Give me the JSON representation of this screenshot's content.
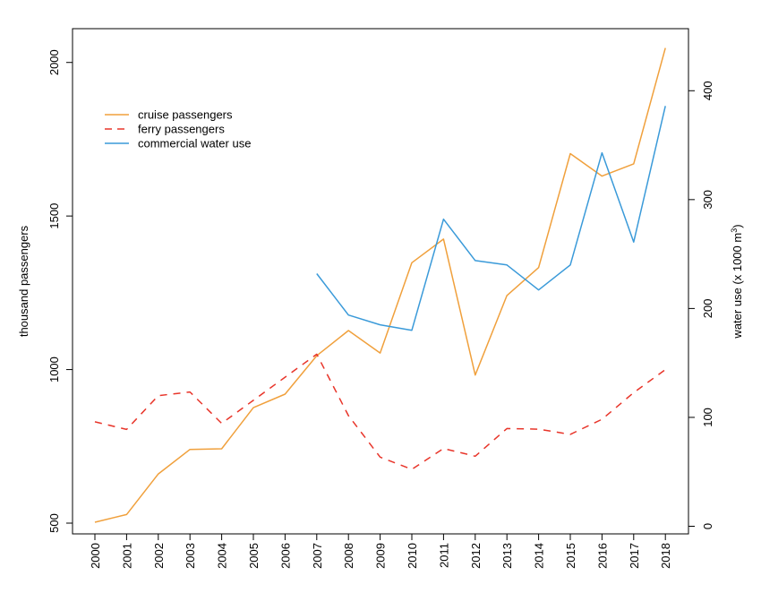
{
  "chart_data": {
    "type": "line",
    "x": [
      2000,
      2001,
      2002,
      2003,
      2004,
      2005,
      2006,
      2007,
      2008,
      2009,
      2010,
      2011,
      2012,
      2013,
      2014,
      2015,
      2016,
      2017,
      2018
    ],
    "ylabel": "thousand passengers",
    "y2label": "water use (x 1000 m³)",
    "y2label_main": "water use (x 1000 m",
    "y2label_sup": "3",
    "y2label_end": ")",
    "ylim": [
      465,
      2110
    ],
    "y2lim": [
      -7,
      457
    ],
    "yticks": [
      "500",
      "1000",
      "1500",
      "2000"
    ],
    "y2ticks": [
      "0",
      "100",
      "200",
      "300",
      "400"
    ],
    "xticks": [
      "2000",
      "2001",
      "2002",
      "2003",
      "2004",
      "2005",
      "2006",
      "2007",
      "2008",
      "2009",
      "2010",
      "2011",
      "2012",
      "2013",
      "2014",
      "2015",
      "2016",
      "2017",
      "2018"
    ],
    "grid": false,
    "legend_position": "top-left",
    "series": [
      {
        "name": "cruise passengers",
        "axis": "left",
        "style": "solid",
        "color": "#F0A03C",
        "values": [
          503,
          528,
          660,
          740,
          742,
          876,
          920,
          1045,
          1127,
          1054,
          1348,
          1425,
          982,
          1241,
          1332,
          1703,
          1630,
          1670,
          2047
        ]
      },
      {
        "name": "ferry passengers",
        "axis": "left",
        "style": "dashed",
        "color": "#E8352A",
        "values": [
          830,
          805,
          915,
          927,
          825,
          900,
          975,
          1050,
          850,
          715,
          675,
          743,
          718,
          808,
          806,
          789,
          838,
          925,
          1000
        ]
      },
      {
        "name": "commercial water use",
        "axis": "right",
        "style": "solid",
        "color": "#3A9AD9",
        "values": [
          null,
          null,
          null,
          null,
          null,
          null,
          null,
          232,
          194,
          185,
          180,
          282,
          244,
          240,
          217,
          240,
          343,
          261,
          386
        ]
      }
    ]
  }
}
